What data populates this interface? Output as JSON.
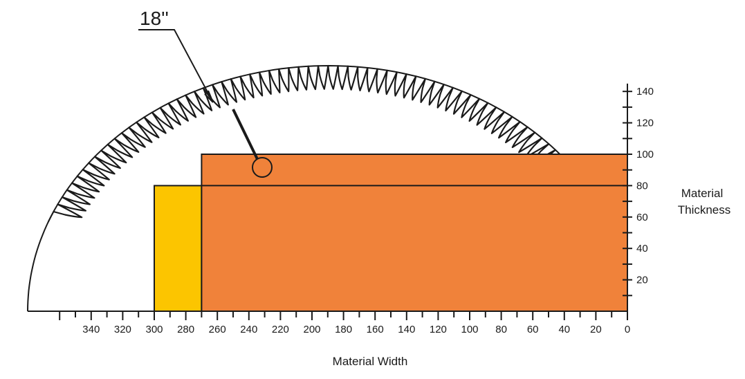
{
  "blade": {
    "label": "18''",
    "teeth": 62
  },
  "x_axis": {
    "title": "Material Width",
    "ticks": [
      "340",
      "320",
      "300",
      "280",
      "260",
      "240",
      "220",
      "200",
      "180",
      "160",
      "140",
      "120",
      "100",
      "80",
      "60",
      "40",
      "20",
      "0"
    ]
  },
  "y_axis": {
    "title_line1": "Material",
    "title_line2": "Thickness",
    "ticks": [
      "20",
      "40",
      "60",
      "80",
      "100",
      "120",
      "140"
    ]
  },
  "colors": {
    "orange": "#f0823a",
    "yellow": "#fcc500",
    "line": "#1a1a1a",
    "background": "#ffffff"
  },
  "regions": [
    {
      "name": "yellow-region",
      "width_from": 300,
      "width_to": 270,
      "thickness_from": 0,
      "thickness_to": 80,
      "color": "#fcc500"
    },
    {
      "name": "orange-region",
      "width_from": 270,
      "width_to": 0,
      "thickness_from": 0,
      "thickness_to": 100,
      "color": "#f0823a"
    }
  ],
  "reference_line_thickness": 80
}
